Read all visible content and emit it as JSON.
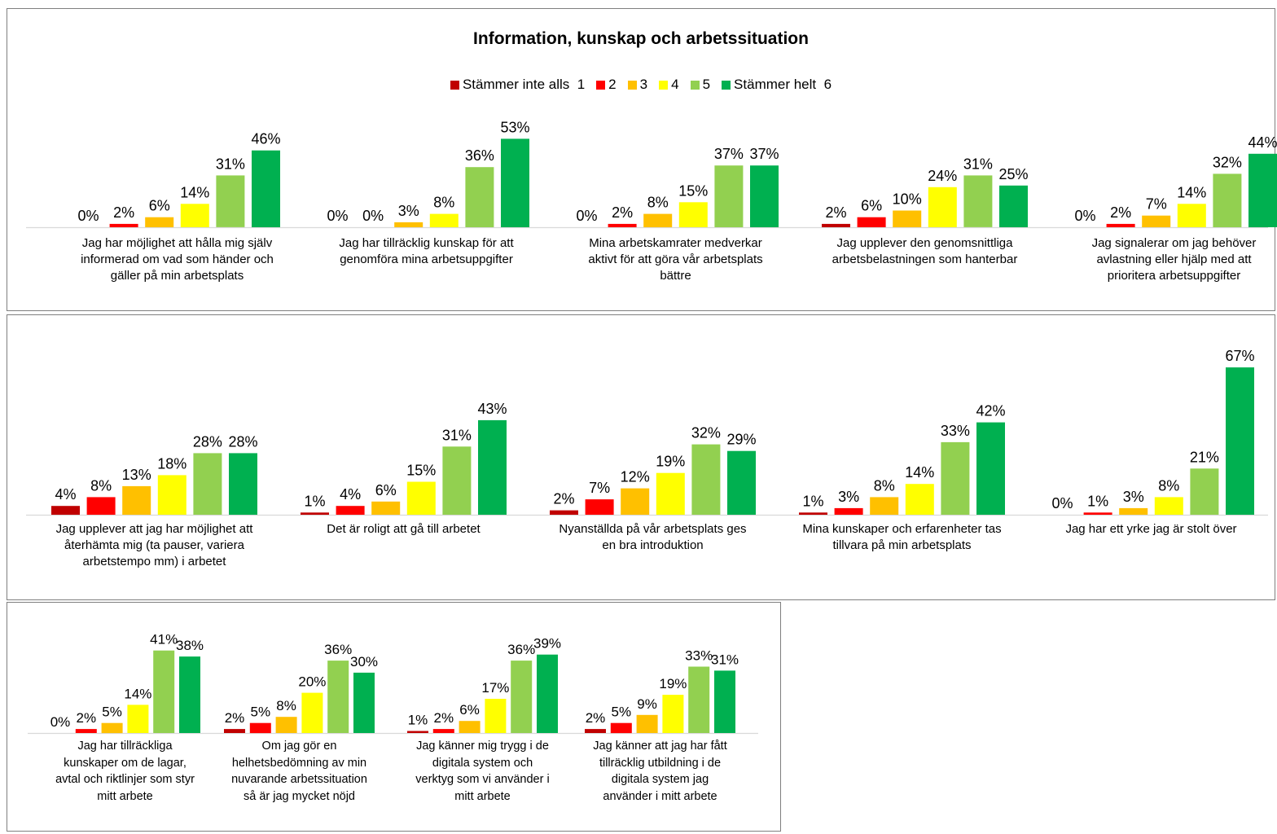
{
  "title": "Information, kunskap och arbetssituation",
  "legend": [
    {
      "label": "Stämmer inte alls  1",
      "color": "#c00000"
    },
    {
      "label": "2",
      "color": "#ff0000"
    },
    {
      "label": "3",
      "color": "#ffc000"
    },
    {
      "label": "4",
      "color": "#ffff00"
    },
    {
      "label": "5",
      "color": "#92d050"
    },
    {
      "label": "Stämmer helt  6",
      "color": "#00b050"
    }
  ],
  "chart_data": [
    {
      "type": "bar",
      "title": "Information, kunskap och arbetssituation",
      "series_names": [
        "Stämmer inte alls  1",
        "2",
        "3",
        "4",
        "5",
        "Stämmer helt  6"
      ],
      "categories": [
        "Jag har möjlighet att hålla mig själv informerad om vad som händer och gäller på min arbetsplats",
        "Jag har tillräcklig kunskap för att genomföra mina arbetsuppgifter",
        "Mina arbetskamrater medverkar aktivt för att göra vår arbetsplats bättre",
        "Jag upplever den genomsnittliga arbetsbelastningen som hanterbar",
        "Jag signalerar om jag behöver avlastning eller hjälp med att prioritera arbetsuppgifter"
      ],
      "category_lines": [
        [
          "Jag har möjlighet att hålla mig själv",
          "informerad om vad som händer och",
          "gäller på min arbetsplats"
        ],
        [
          "Jag har tillräcklig kunskap för att",
          "genomföra mina arbetsuppgifter"
        ],
        [
          "Mina arbetskamrater medverkar",
          "aktivt för att göra vår arbetsplats",
          "bättre"
        ],
        [
          "Jag upplever den genomsnittliga",
          "arbetsbelastningen som hanterbar"
        ],
        [
          "Jag signalerar om jag behöver",
          "avlastning eller hjälp med att",
          "prioritera arbetsuppgifter"
        ]
      ],
      "values": [
        [
          0,
          2,
          6,
          14,
          31,
          46
        ],
        [
          0,
          0,
          3,
          8,
          36,
          53
        ],
        [
          0,
          2,
          8,
          15,
          37,
          37
        ],
        [
          2,
          6,
          10,
          24,
          31,
          25
        ],
        [
          0,
          2,
          7,
          14,
          32,
          44
        ]
      ],
      "value_labels": [
        [
          "0%",
          "2%",
          "6%",
          "14%",
          "31%",
          "46%"
        ],
        [
          "0%",
          "0%",
          "3%",
          "8%",
          "36%",
          "53%"
        ],
        [
          "0%",
          "2%",
          "8%",
          "15%",
          "37%",
          "37%"
        ],
        [
          "2%",
          "6%",
          "10%",
          "24%",
          "31%",
          "25%"
        ],
        [
          "0%",
          "2%",
          "7%",
          "14%",
          "32%",
          "44%"
        ]
      ],
      "unit": "%",
      "ylim": [
        0,
        100
      ],
      "grid": false,
      "legend_position": "top"
    },
    {
      "type": "bar",
      "series_names": [
        "Stämmer inte alls  1",
        "2",
        "3",
        "4",
        "5",
        "Stämmer helt  6"
      ],
      "categories": [
        "Jag upplever att jag har möjlighet att återhämta mig (ta pauser, variera arbetstempo mm) i arbetet",
        "Det är roligt att gå till arbetet",
        "Nyanställda på vår arbetsplats ges en bra introduktion",
        "Mina kunskaper och erfarenheter tas tillvara på min arbetsplats",
        "Jag har ett yrke jag är stolt över"
      ],
      "category_lines": [
        [
          "Jag upplever att jag har möjlighet att",
          "återhämta mig (ta pauser, variera",
          "arbetstempo mm) i arbetet"
        ],
        [
          "Det är roligt att gå till arbetet"
        ],
        [
          "Nyanställda på vår arbetsplats ges",
          "en bra introduktion"
        ],
        [
          "Mina kunskaper och erfarenheter tas",
          "tillvara på min arbetsplats"
        ],
        [
          "Jag har ett yrke jag är stolt över"
        ]
      ],
      "values": [
        [
          4,
          8,
          13,
          18,
          28,
          28
        ],
        [
          1,
          4,
          6,
          15,
          31,
          43
        ],
        [
          2,
          7,
          12,
          19,
          32,
          29
        ],
        [
          1,
          3,
          8,
          14,
          33,
          42
        ],
        [
          0,
          1,
          3,
          8,
          21,
          67
        ]
      ],
      "value_labels": [
        [
          "4%",
          "8%",
          "13%",
          "18%",
          "28%",
          "28%"
        ],
        [
          "1%",
          "4%",
          "6%",
          "15%",
          "31%",
          "43%"
        ],
        [
          "2%",
          "7%",
          "12%",
          "19%",
          "32%",
          "29%"
        ],
        [
          "1%",
          "3%",
          "8%",
          "14%",
          "33%",
          "42%"
        ],
        [
          "0%",
          "1%",
          "3%",
          "8%",
          "21%",
          "67%"
        ]
      ],
      "unit": "%",
      "ylim": [
        0,
        100
      ],
      "grid": false
    },
    {
      "type": "bar",
      "series_names": [
        "Stämmer inte alls  1",
        "2",
        "3",
        "4",
        "5",
        "Stämmer helt  6"
      ],
      "categories": [
        "Jag har tillräckliga kunskaper om de lagar, avtal och riktlinjer som styr mitt arbete",
        "Om jag gör en helhetsbedömning av min nuvarande arbetssituation så är jag mycket nöjd",
        "Jag känner mig trygg i de digitala system och verktyg som vi använder i mitt arbete",
        "Jag känner att jag har fått tillräcklig utbildning i de digitala system jag använder i mitt arbete"
      ],
      "category_lines": [
        [
          "Jag har tillräckliga",
          "kunskaper om de lagar,",
          "avtal och riktlinjer som styr",
          "mitt arbete"
        ],
        [
          "Om jag gör en",
          "helhetsbedömning av min",
          "nuvarande arbetssituation",
          "så är jag mycket nöjd"
        ],
        [
          "Jag känner mig trygg i de",
          "digitala system och",
          "verktyg som vi använder i",
          "mitt arbete"
        ],
        [
          "Jag känner att jag har fått",
          "tillräcklig utbildning i de",
          "digitala system jag",
          "använder i mitt arbete"
        ]
      ],
      "values": [
        [
          0,
          2,
          5,
          14,
          41,
          38
        ],
        [
          2,
          5,
          8,
          20,
          36,
          30
        ],
        [
          1,
          2,
          6,
          17,
          36,
          39
        ],
        [
          2,
          5,
          9,
          19,
          33,
          31
        ]
      ],
      "value_labels": [
        [
          "0%",
          "2%",
          "5%",
          "14%",
          "41%",
          "38%"
        ],
        [
          "2%",
          "5%",
          "8%",
          "20%",
          "36%",
          "30%"
        ],
        [
          "1%",
          "2%",
          "6%",
          "17%",
          "36%",
          "39%"
        ],
        [
          "2%",
          "5%",
          "9%",
          "19%",
          "33%",
          "31%"
        ]
      ],
      "unit": "%",
      "ylim": [
        0,
        100
      ],
      "grid": false
    }
  ]
}
